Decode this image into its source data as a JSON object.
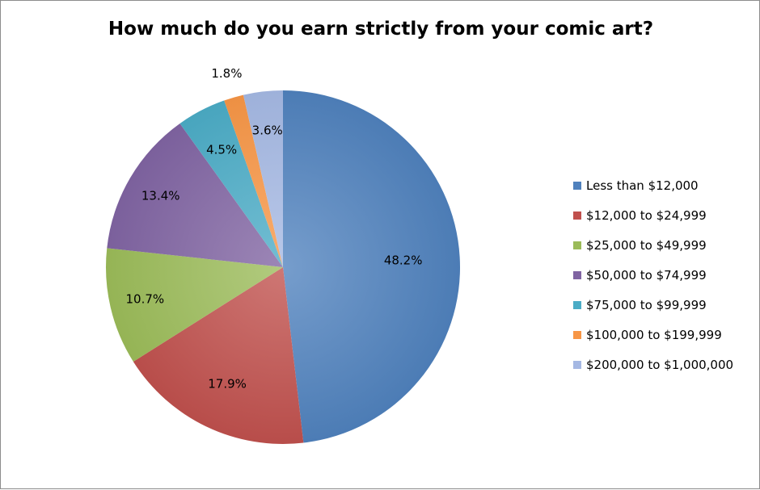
{
  "chart_data": {
    "type": "pie",
    "title": "How much do you earn strictly from your comic art?",
    "legend_position": "right",
    "slices": [
      {
        "label": "Less than $12,000",
        "value": 48.2,
        "display": "48.2%",
        "color": "#4f81bd"
      },
      {
        "label": "$12,000 to $24,999",
        "value": 17.9,
        "display": "17.9%",
        "color": "#c0504d"
      },
      {
        "label": "$25,000 to $49,999",
        "value": 10.7,
        "display": "10.7%",
        "color": "#9bbb59"
      },
      {
        "label": "$50,000 to $74,999",
        "value": 13.4,
        "display": "13.4%",
        "color": "#8064a2"
      },
      {
        "label": "$75,000 to $99,999",
        "value": 4.5,
        "display": "4.5%",
        "color": "#4bacc6"
      },
      {
        "label": "$100,000 to $199,999",
        "value": 1.8,
        "display": "1.8%",
        "color": "#f79646"
      },
      {
        "label": "$200,000 to $1,000,000",
        "value": 3.6,
        "display": "3.6%",
        "color": "#a5b8e3"
      }
    ]
  }
}
